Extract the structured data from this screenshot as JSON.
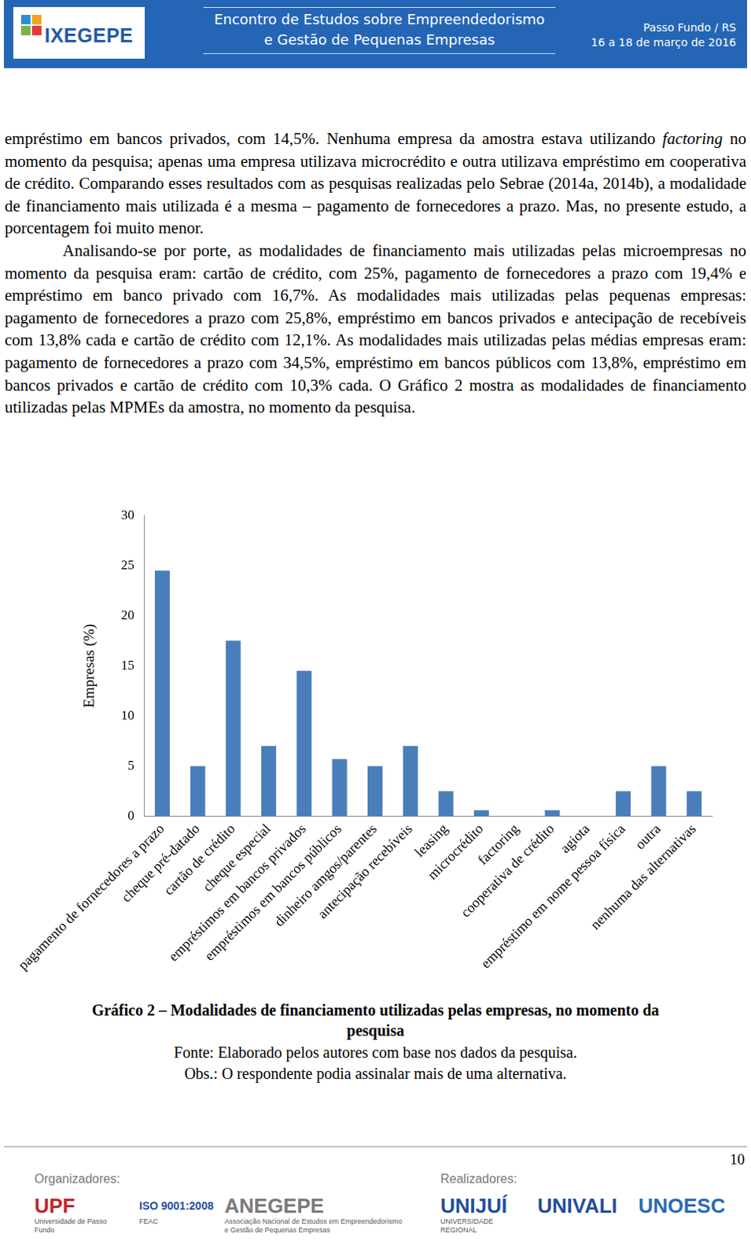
{
  "header": {
    "logo": "IXEGEPE",
    "title_lines": [
      "Encontro de Estudos sobre Empreendedorismo",
      "e Gestão de Pequenas Empresas"
    ],
    "place": "Passo Fundo / RS",
    "dates": "16 a 18 de março de 2016"
  },
  "paragraphs": [
    {
      "indent": false,
      "segments": [
        {
          "text": "empréstimo em bancos privados, com 14,5%. Nenhuma empresa da amostra estava utilizando "
        },
        {
          "text": "factoring",
          "italic": true
        },
        {
          "text": " no momento da pesquisa; apenas uma empresa utilizava microcrédito e outra utilizava empréstimo em cooperativa de crédito. Comparando esses resultados com as pesquisas realizadas pelo Sebrae (2014a, 2014b), a modalidade de financiamento mais utilizada é a mesma – pagamento de fornecedores a prazo. Mas, no presente estudo, a porcentagem foi muito menor."
        }
      ]
    },
    {
      "indent": true,
      "segments": [
        {
          "text": "Analisando-se por porte, as modalidades de financiamento mais utilizadas pelas microempresas no momento da pesquisa eram: cartão de crédito, com 25%, pagamento de fornecedores a prazo com 19,4% e empréstimo em banco privado com 16,7%. As modalidades mais utilizadas pelas pequenas empresas: pagamento de fornecedores a prazo com 25,8%, empréstimo em bancos privados e antecipação de recebíveis com 13,8% cada e cartão de crédito com 12,1%. As modalidades mais utilizadas pelas médias empresas eram: pagamento de fornecedores a prazo com 34,5%, empréstimo em bancos públicos com 13,8%, empréstimo em bancos privados e cartão de crédito com 10,3% cada. O Gráfico 2 mostra as modalidades de financiamento utilizadas pelas MPMEs da amostra, no momento da pesquisa."
        }
      ]
    }
  ],
  "chart_data": {
    "type": "bar",
    "y_label": "Empresas (%)",
    "categories": [
      "pagamento de fornecedores a prazo",
      "cheque pré-datado",
      "cartão de crédito",
      "cheque especial",
      "empréstimos em bancos privados",
      "empréstimos em bancos públicos",
      "dinheiro amgos/parentes",
      "antecipação recebíveis",
      "leasing",
      "microcrédito",
      "factoring",
      "cooperativa de crédito",
      "agiota",
      "empréstimo em nome pessoa física",
      "outra",
      "nenhuma das alternativas"
    ],
    "values": [
      24.5,
      5,
      17.5,
      7,
      14.5,
      5.7,
      5,
      7,
      2.5,
      0.6,
      0,
      0.6,
      0,
      2.5,
      5,
      2.5
    ],
    "color": "#4a7ebb",
    "ylim": [
      0,
      30
    ],
    "yticks": [
      0,
      5,
      10,
      15,
      20,
      25,
      30
    ],
    "grid": false
  },
  "caption": {
    "title": "Gráfico 2 – Modalidades de financiamento utilizadas pelas empresas, no momento da pesquisa",
    "source": "Fonte: Elaborado pelos autores com base nos dados da pesquisa.",
    "note": "Obs.: O respondente podia assinalar mais de uma alternativa."
  },
  "page_number": "10",
  "footer": {
    "organizers_label": "Organizadores:",
    "organizers": [
      {
        "name": "UPF",
        "sub": "Universidade de Passo Fundo",
        "color": "#c0272d"
      },
      {
        "name": "ISO 9001:2008",
        "sub": "FEAC",
        "color": "#1f4e9c"
      },
      {
        "name": "ANEGEPE",
        "sub": "Associação Nacional de Estudos em Empreendedorismo e Gestão de Pequenas Empresas",
        "color": "#7a7a7a"
      }
    ],
    "sponsors_label": "Realizadores:",
    "sponsors": [
      {
        "name": "UNIJUÍ",
        "sub": "UNIVERSIDADE REGIONAL",
        "color": "#1f4e9c"
      },
      {
        "name": "UNIVALI",
        "color": "#1f4e9c"
      },
      {
        "name": "UNOESC",
        "color": "#2a6ab3"
      }
    ]
  }
}
